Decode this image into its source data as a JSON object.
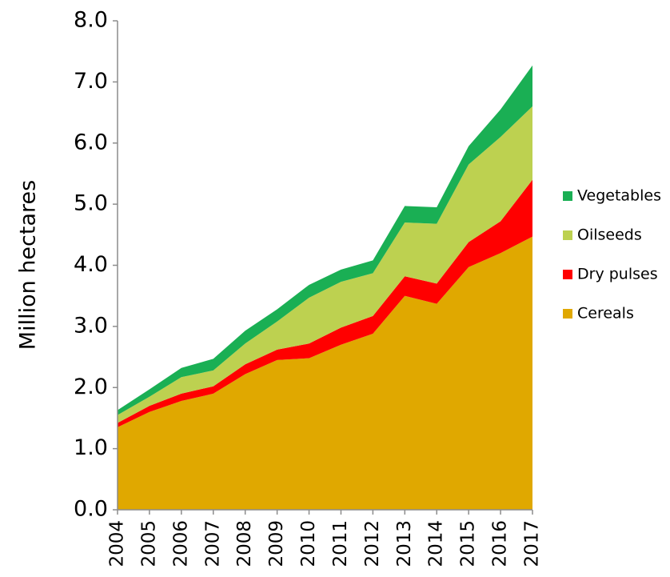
{
  "chart_data": {
    "type": "stacked_area",
    "y_label": "Million hectares",
    "categories": [
      "2004",
      "2005",
      "2006",
      "2007",
      "2008",
      "2009",
      "2010",
      "2011",
      "2012",
      "2013",
      "2014",
      "2015",
      "2016",
      "2017"
    ],
    "series": [
      {
        "name": "Cereals",
        "color": "#e0a800",
        "values": [
          1.35,
          1.6,
          1.78,
          1.9,
          2.22,
          2.45,
          2.48,
          2.7,
          2.88,
          3.5,
          3.37,
          3.97,
          4.2,
          4.47
        ]
      },
      {
        "name": "Dry pulses",
        "color": "#ff0000",
        "values": [
          0.07,
          0.1,
          0.12,
          0.12,
          0.16,
          0.17,
          0.24,
          0.28,
          0.29,
          0.32,
          0.33,
          0.41,
          0.52,
          0.93
        ]
      },
      {
        "name": "Oilseeds",
        "color": "#bdd150",
        "values": [
          0.13,
          0.15,
          0.27,
          0.26,
          0.34,
          0.46,
          0.75,
          0.75,
          0.7,
          0.88,
          0.98,
          1.27,
          1.38,
          1.2
        ]
      },
      {
        "name": "Vegetables",
        "color": "#1aaf54",
        "values": [
          0.08,
          0.12,
          0.15,
          0.19,
          0.21,
          0.2,
          0.21,
          0.2,
          0.21,
          0.27,
          0.27,
          0.3,
          0.45,
          0.67
        ]
      }
    ],
    "ylim": [
      0,
      8
    ],
    "yticks": [
      {
        "value": 0,
        "label": "0.0"
      },
      {
        "value": 1,
        "label": "1.0"
      },
      {
        "value": 2,
        "label": "2.0"
      },
      {
        "value": 3,
        "label": "3.0"
      },
      {
        "value": 4,
        "label": "4.0"
      },
      {
        "value": 5,
        "label": "5.0"
      },
      {
        "value": 6,
        "label": "6.0"
      },
      {
        "value": 7,
        "label": "7.0"
      },
      {
        "value": 8,
        "label": "8.0"
      }
    ],
    "legend": "right"
  }
}
